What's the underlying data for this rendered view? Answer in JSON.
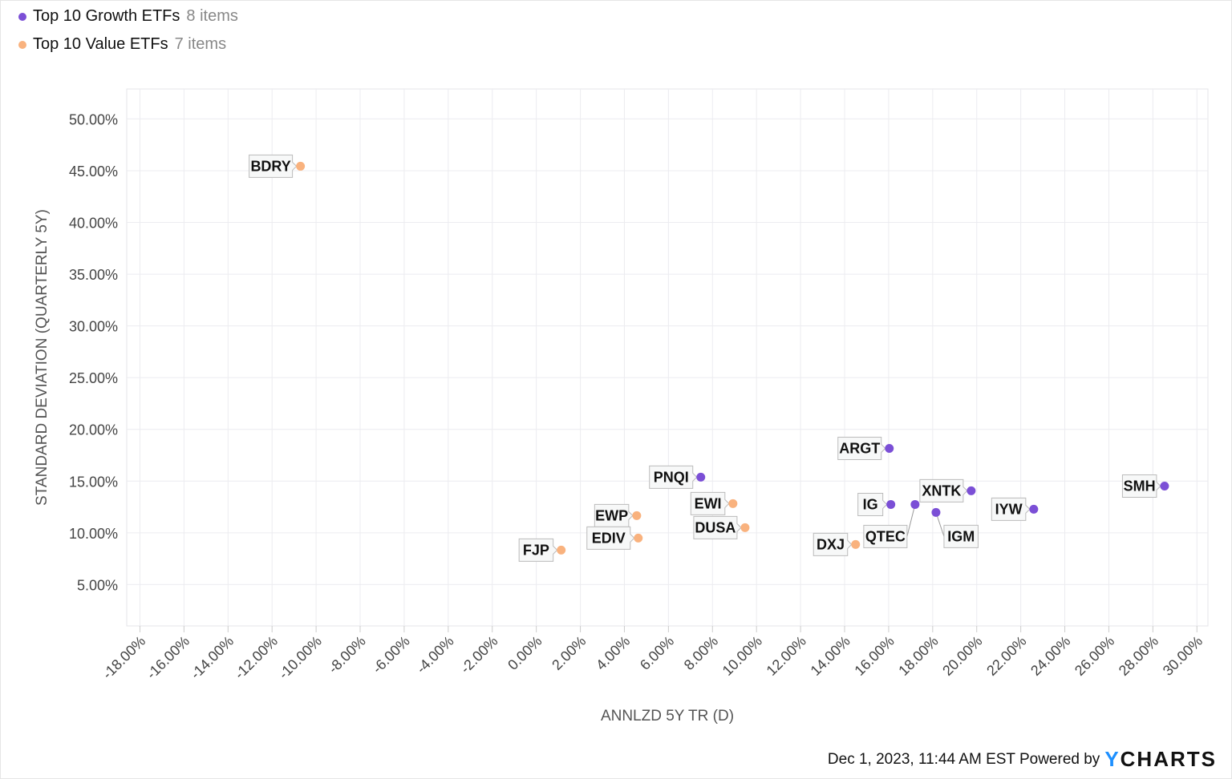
{
  "legend": [
    {
      "name": "Top 10 Growth ETFs",
      "count": "8 items",
      "color": "#7b4fd6"
    },
    {
      "name": "Top 10 Value ETFs",
      "count": "7 items",
      "color": "#f9b27e"
    }
  ],
  "footer": {
    "timestamp": "Dec 1, 2023, 11:44 AM EST Powered by",
    "logo": "YCHARTS"
  },
  "chart_data": {
    "type": "scatter",
    "xlabel": "ANNLZD 5Y TR (D)",
    "ylabel": "STANDARD DEVIATION (QUARTERLY 5Y)",
    "xlim": [
      -18.6,
      30.5
    ],
    "ylim": [
      1.0,
      52.9
    ],
    "xticks": [
      -18,
      -16,
      -14,
      -12,
      -10,
      -8,
      -6,
      -4,
      -2,
      0,
      2,
      4,
      6,
      8,
      10,
      12,
      14,
      16,
      18,
      20,
      22,
      24,
      26,
      28,
      30
    ],
    "yticks": [
      5,
      10,
      15,
      20,
      25,
      30,
      35,
      40,
      45,
      50
    ],
    "tick_format": "percent_2dp",
    "grid": true,
    "legend_position": "top-left",
    "series": [
      {
        "name": "Top 10 Growth ETFs",
        "color": "#7b4fd6",
        "points": [
          {
            "label": "IGM",
            "x": 18.15,
            "y": 11.97
          },
          {
            "label": "IG",
            "x": 16.1,
            "y": 12.74
          },
          {
            "label": "QTEC",
            "x": 17.2,
            "y": 12.74
          },
          {
            "label": "ARGT",
            "x": 16.03,
            "y": 18.16
          },
          {
            "label": "PNQI",
            "x": 7.47,
            "y": 15.38
          },
          {
            "label": "XNTK",
            "x": 19.75,
            "y": 14.06
          },
          {
            "label": "IYW",
            "x": 22.59,
            "y": 12.28
          },
          {
            "label": "SMH",
            "x": 28.53,
            "y": 14.52
          }
        ]
      },
      {
        "name": "Top 10 Value ETFs",
        "color": "#f9b27e",
        "points": [
          {
            "label": "BDRY",
            "x": -10.71,
            "y": 45.43
          },
          {
            "label": "FJP",
            "x": 1.13,
            "y": 8.33
          },
          {
            "label": "EWP",
            "x": 4.56,
            "y": 11.66
          },
          {
            "label": "EDIV",
            "x": 4.63,
            "y": 9.49
          },
          {
            "label": "EWI",
            "x": 8.93,
            "y": 12.82
          },
          {
            "label": "DUSA",
            "x": 9.48,
            "y": 10.5
          },
          {
            "label": "DXJ",
            "x": 14.5,
            "y": 8.87
          }
        ]
      }
    ]
  }
}
